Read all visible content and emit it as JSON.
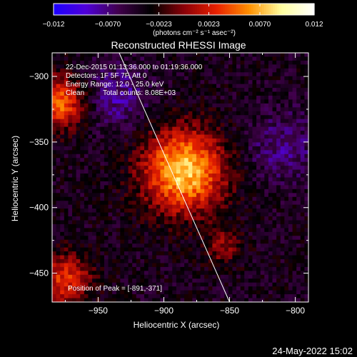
{
  "chart_data": {
    "type": "heatmap",
    "title": "Reconstructed RHESSI Image",
    "xlabel": "Heliocentric X (arcsec)",
    "ylabel": "Heliocentric Y (arcsec)",
    "xlim": [
      -985,
      -790
    ],
    "ylim": [
      -472,
      -282
    ],
    "x_ticks": [
      -950,
      -900,
      -850,
      -800
    ],
    "y_ticks": [
      -300,
      -350,
      -400,
      -450
    ],
    "x_tick_labels": [
      "−950",
      "−900",
      "−850",
      "−800"
    ],
    "y_tick_labels": [
      "−300",
      "−350",
      "−400",
      "−450"
    ],
    "grid": false,
    "colorbar": {
      "range": [
        -0.012,
        0.012
      ],
      "ticks": [
        -0.012,
        -0.007,
        -0.0023,
        0.0023,
        0.007,
        0.012
      ],
      "tick_labels": [
        "−0.012",
        "−0.0070",
        "−0.0023",
        "0.0023",
        "0.0070",
        "0.012"
      ],
      "unit_label": "(photons cm⁻² s⁻¹ asec⁻²)",
      "colors": [
        "#1c00ff",
        "#5000d8",
        "#40004a",
        "#000000",
        "#8a0008",
        "#e82000",
        "#ff9000",
        "#ffffa0",
        "#ffffff"
      ]
    },
    "annotations": {
      "time_range": "22-Dec-2015 01:13:36.000 to 01:19:36.000",
      "detectors": "Detectors: 1F 5F 7F, Att 0",
      "energy_range": "Energy Range: 12.0 - 25.0 keV",
      "method": "Clean",
      "total_counts": "Total counts: 8.08E+03",
      "peak": "Position of Peak = [-891,-371]"
    },
    "peak_position": [
      -891,
      -371
    ],
    "limb_line": {
      "x": [
        -934,
        -850
      ],
      "y": [
        -282,
        -472
      ]
    },
    "sources": [
      {
        "x": -885,
        "y": -372,
        "peak": 0.012
      },
      {
        "x": -980,
        "y": -320,
        "peak": 0.009
      },
      {
        "x": -975,
        "y": -455,
        "peak": 0.007
      },
      {
        "x": -855,
        "y": -430,
        "peak": 0.004
      }
    ],
    "background_level": -0.004
  },
  "footer": {
    "date": "24-May-2022 15:02"
  }
}
